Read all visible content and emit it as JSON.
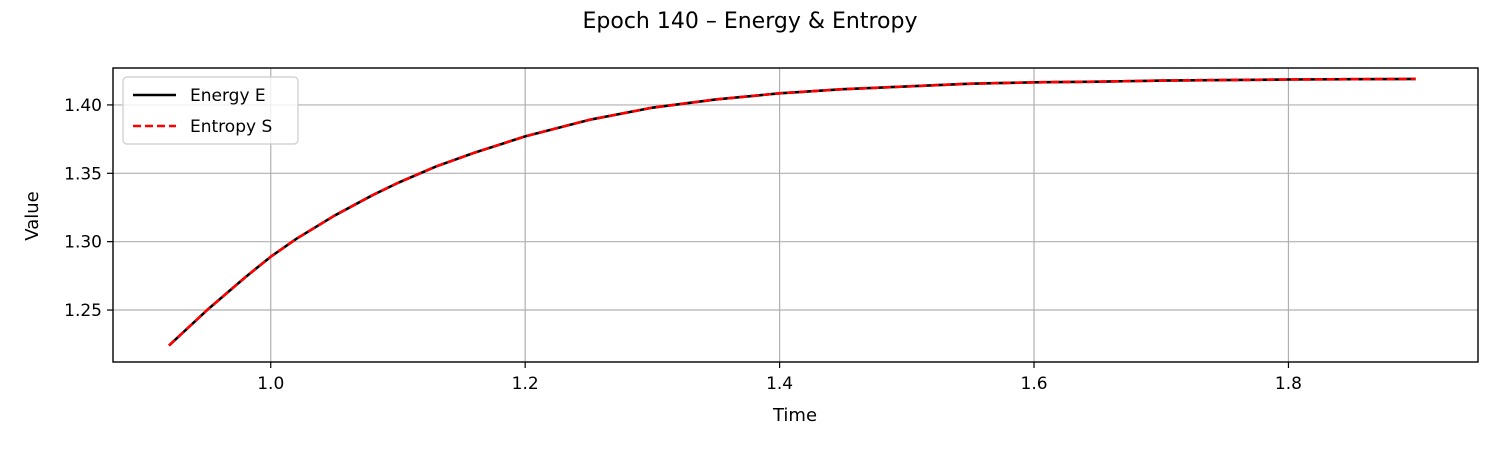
{
  "chart_data": {
    "type": "line",
    "title": "Epoch 140 – Energy & Entropy",
    "xlabel": "Time",
    "ylabel": "Value",
    "xlim": [
      0.876,
      1.949
    ],
    "ylim": [
      1.212,
      1.427
    ],
    "xticks": [
      1.0,
      1.2,
      1.4,
      1.6,
      1.8
    ],
    "xtick_labels": [
      "1.0",
      "1.2",
      "1.4",
      "1.6",
      "1.8"
    ],
    "yticks": [
      1.25,
      1.3,
      1.35,
      1.4
    ],
    "ytick_labels": [
      "1.25",
      "1.30",
      "1.35",
      "1.40"
    ],
    "grid": true,
    "legend_position": "top-left",
    "x": [
      0.92,
      0.95,
      0.98,
      1.0,
      1.02,
      1.05,
      1.08,
      1.1,
      1.13,
      1.16,
      1.2,
      1.25,
      1.3,
      1.35,
      1.4,
      1.45,
      1.5,
      1.55,
      1.6,
      1.65,
      1.7,
      1.75,
      1.8,
      1.85,
      1.9
    ],
    "series": [
      {
        "name": "Energy E",
        "color": "#000000",
        "style": "solid",
        "values": [
          1.224,
          1.25,
          1.274,
          1.289,
          1.302,
          1.319,
          1.334,
          1.343,
          1.355,
          1.365,
          1.377,
          1.389,
          1.398,
          1.404,
          1.4085,
          1.4115,
          1.4135,
          1.4155,
          1.4165,
          1.417,
          1.4178,
          1.4182,
          1.4186,
          1.4188,
          1.419
        ]
      },
      {
        "name": "Entropy S",
        "color": "#ff0000",
        "style": "dashed",
        "values": [
          1.224,
          1.25,
          1.274,
          1.289,
          1.302,
          1.319,
          1.334,
          1.343,
          1.355,
          1.365,
          1.377,
          1.389,
          1.398,
          1.404,
          1.4085,
          1.4115,
          1.4135,
          1.4155,
          1.4165,
          1.417,
          1.4178,
          1.4182,
          1.4186,
          1.4188,
          1.419
        ]
      }
    ]
  }
}
